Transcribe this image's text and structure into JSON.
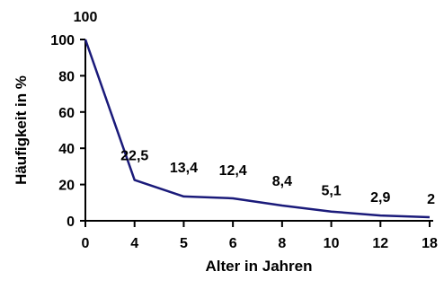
{
  "chart_data": {
    "type": "line",
    "categories": [
      "0",
      "4",
      "5",
      "6",
      "8",
      "10",
      "12",
      "18"
    ],
    "values": [
      100,
      22.5,
      13.4,
      12.4,
      8.4,
      5.1,
      2.9,
      2
    ],
    "data_labels": [
      "100",
      "22,5",
      "13,4",
      "12,4",
      "8,4",
      "5,1",
      "2,9",
      "2"
    ],
    "title": "",
    "xlabel": "Alter in Jahren",
    "ylabel": "Häufigkeit in %",
    "ylim": [
      0,
      100
    ],
    "yticks": [
      "0",
      "20",
      "40",
      "60",
      "80",
      "100"
    ],
    "grid": false,
    "legend": "none",
    "line_color": "#1a1a7a"
  }
}
